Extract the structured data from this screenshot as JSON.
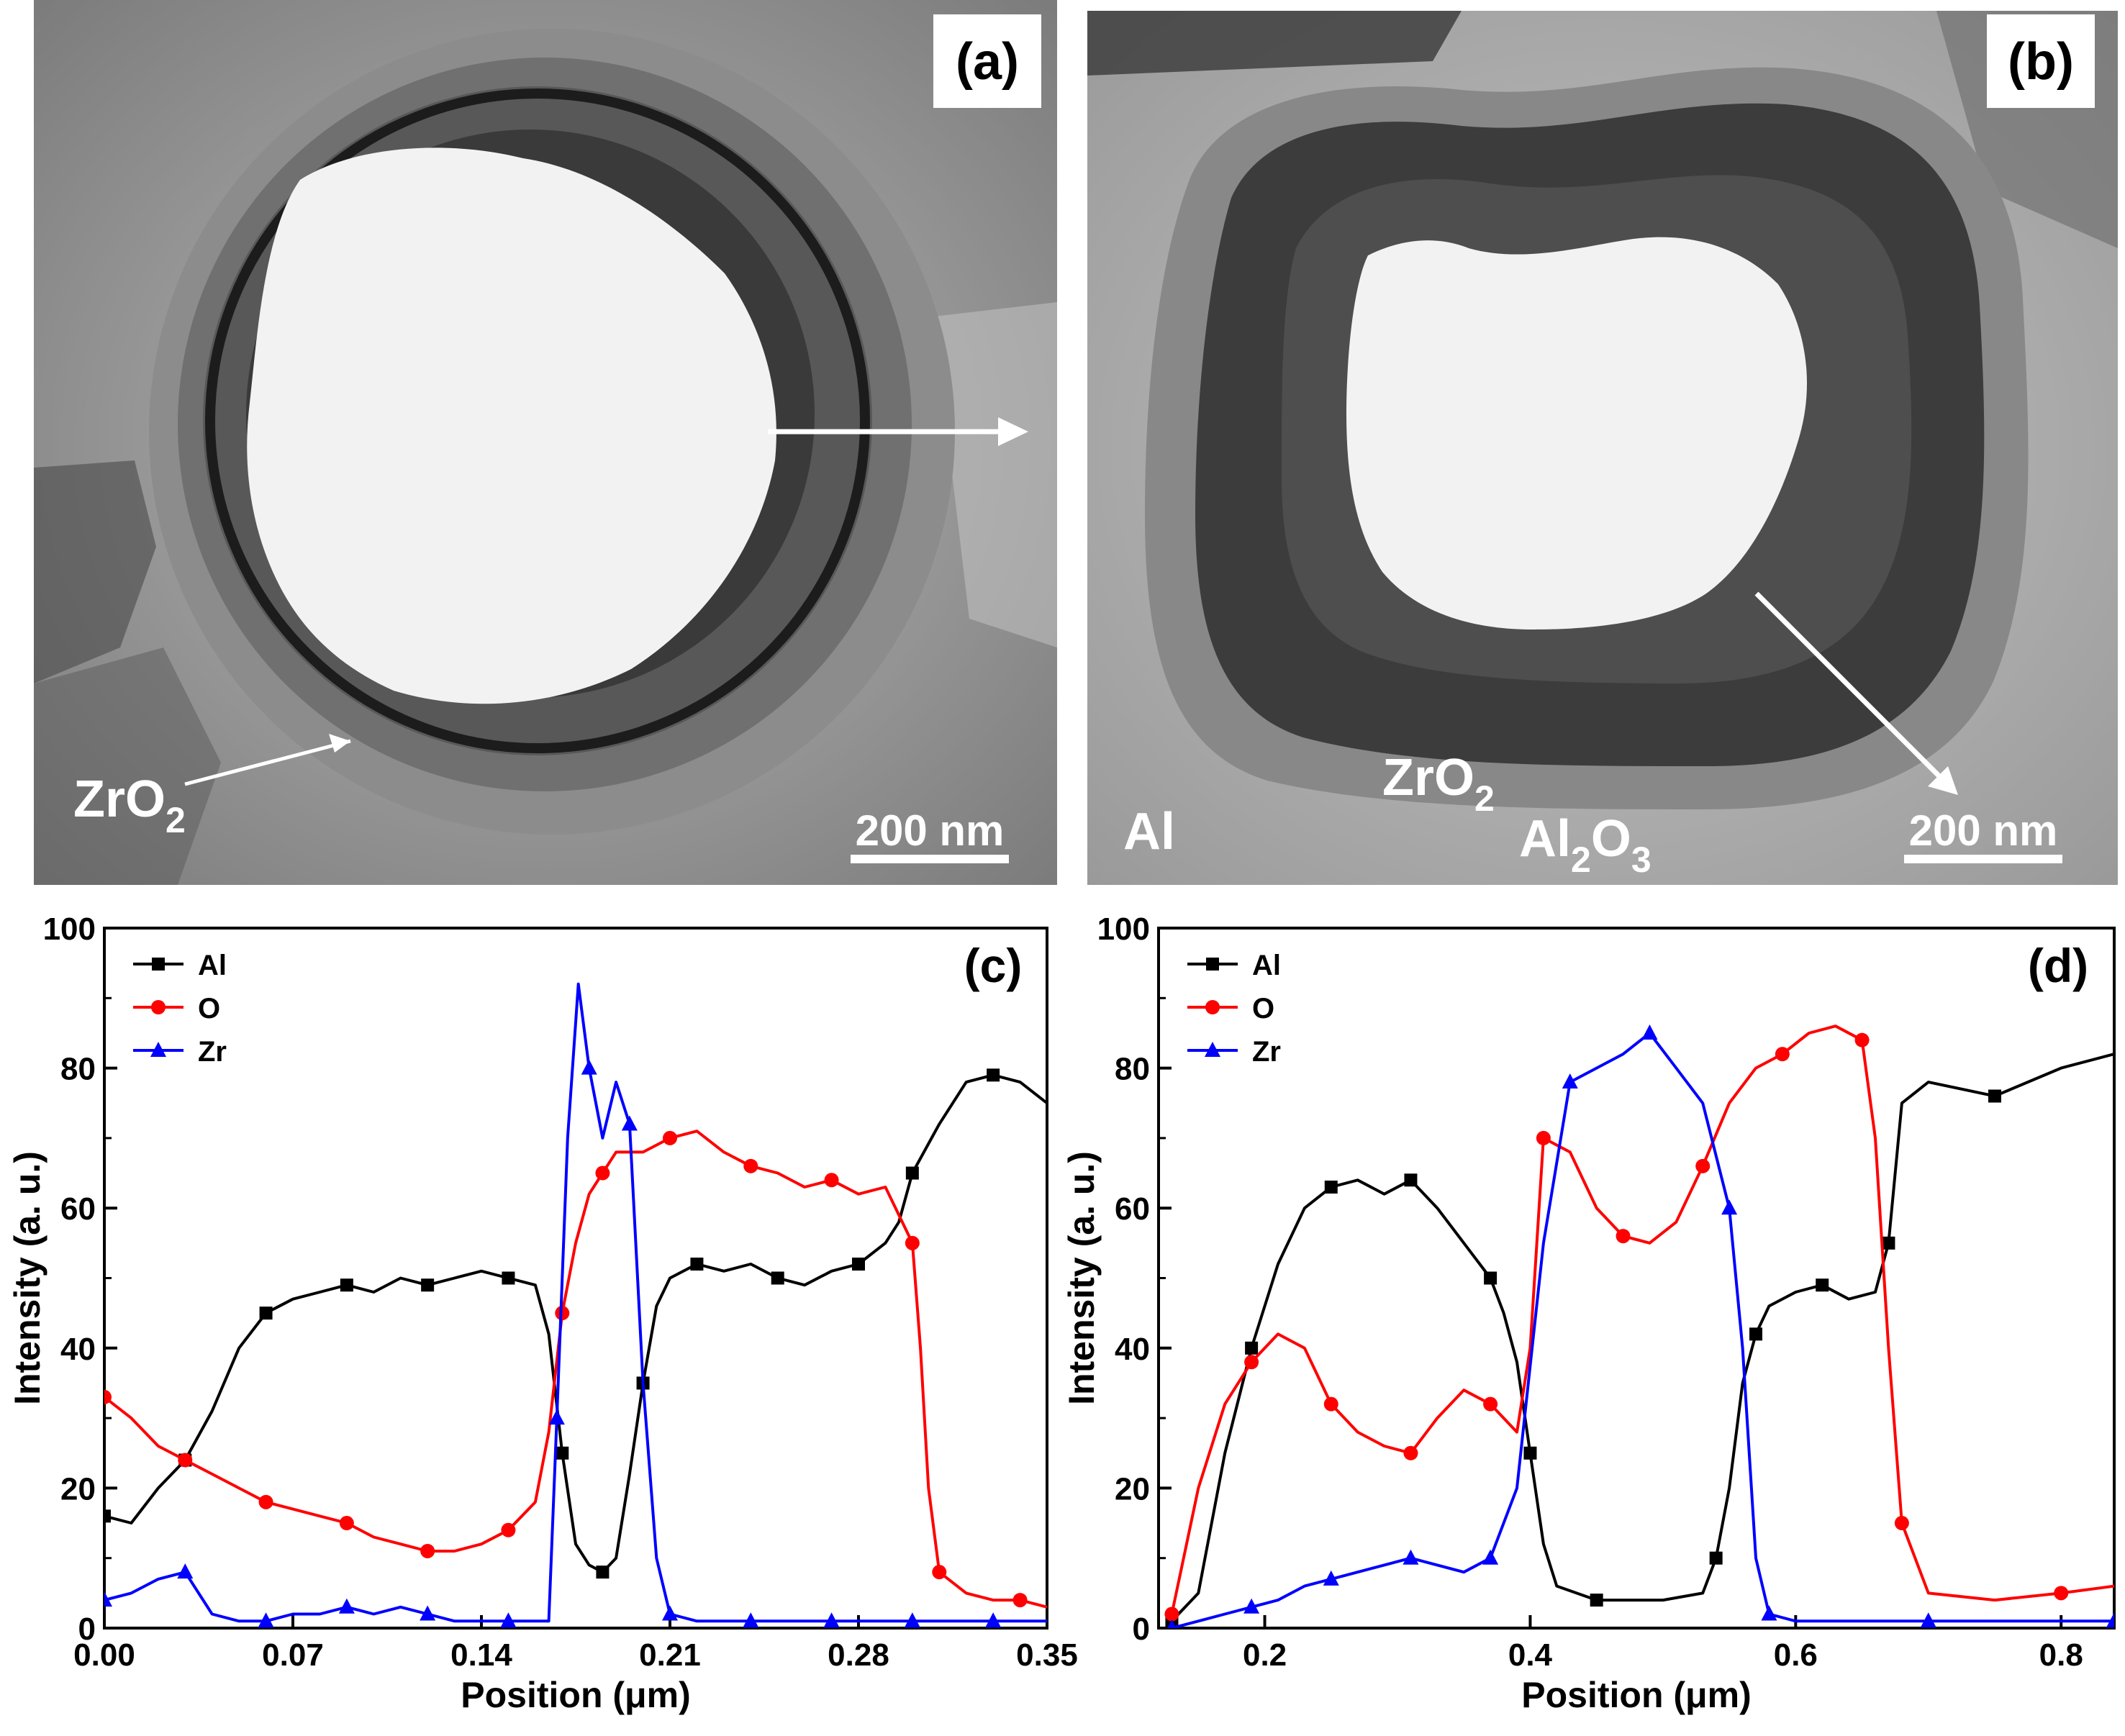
{
  "panels": {
    "a": {
      "tag": "(a)",
      "label_main": "ZrO",
      "label_sub": "2",
      "scale_bar": "200 nm"
    },
    "b": {
      "tag": "(b)",
      "label_al": "Al",
      "label_zro2_main": "ZrO",
      "label_zro2_sub": "2",
      "label_al2o3_a": "Al",
      "label_al2o3_sub1": "2",
      "label_al2o3_b": "O",
      "label_al2o3_sub2": "3",
      "scale_bar": "200 nm"
    }
  },
  "colors": {
    "Al": "#000000",
    "O": "#ff0000",
    "Zr": "#0000ff"
  },
  "chart_data": [
    {
      "panel": "(c)",
      "type": "line",
      "xlabel": "Position (μm)",
      "ylabel": "Intensity (a. u.)",
      "xlim": [
        0,
        0.35
      ],
      "ylim": [
        0,
        100
      ],
      "xticks": [
        "0.00",
        "0.07",
        "0.14",
        "0.21",
        "0.28",
        "0.35"
      ],
      "yticks": [
        "0",
        "20",
        "40",
        "60",
        "80",
        "100"
      ],
      "legend_position": "top-left",
      "series": [
        {
          "name": "Al",
          "marker": "square",
          "points": [
            [
              0.0,
              16
            ],
            [
              0.01,
              15
            ],
            [
              0.02,
              20
            ],
            [
              0.03,
              24
            ],
            [
              0.04,
              31
            ],
            [
              0.05,
              40
            ],
            [
              0.06,
              45
            ],
            [
              0.07,
              47
            ],
            [
              0.08,
              48
            ],
            [
              0.09,
              49
            ],
            [
              0.1,
              48
            ],
            [
              0.11,
              50
            ],
            [
              0.12,
              49
            ],
            [
              0.13,
              50
            ],
            [
              0.14,
              51
            ],
            [
              0.15,
              50
            ],
            [
              0.16,
              49
            ],
            [
              0.165,
              42
            ],
            [
              0.17,
              25
            ],
            [
              0.175,
              12
            ],
            [
              0.18,
              9
            ],
            [
              0.185,
              8
            ],
            [
              0.19,
              10
            ],
            [
              0.195,
              22
            ],
            [
              0.2,
              35
            ],
            [
              0.205,
              46
            ],
            [
              0.21,
              50
            ],
            [
              0.22,
              52
            ],
            [
              0.23,
              51
            ],
            [
              0.24,
              52
            ],
            [
              0.25,
              50
            ],
            [
              0.26,
              49
            ],
            [
              0.27,
              51
            ],
            [
              0.28,
              52
            ],
            [
              0.29,
              55
            ],
            [
              0.295,
              58
            ],
            [
              0.3,
              65
            ],
            [
              0.31,
              72
            ],
            [
              0.32,
              78
            ],
            [
              0.33,
              79
            ],
            [
              0.34,
              78
            ],
            [
              0.35,
              75
            ]
          ]
        },
        {
          "name": "O",
          "marker": "circle",
          "points": [
            [
              0.0,
              33
            ],
            [
              0.01,
              30
            ],
            [
              0.02,
              26
            ],
            [
              0.03,
              24
            ],
            [
              0.04,
              22
            ],
            [
              0.05,
              20
            ],
            [
              0.06,
              18
            ],
            [
              0.07,
              17
            ],
            [
              0.08,
              16
            ],
            [
              0.09,
              15
            ],
            [
              0.1,
              13
            ],
            [
              0.11,
              12
            ],
            [
              0.12,
              11
            ],
            [
              0.13,
              11
            ],
            [
              0.14,
              12
            ],
            [
              0.15,
              14
            ],
            [
              0.16,
              18
            ],
            [
              0.165,
              28
            ],
            [
              0.17,
              45
            ],
            [
              0.175,
              55
            ],
            [
              0.18,
              62
            ],
            [
              0.185,
              65
            ],
            [
              0.19,
              68
            ],
            [
              0.2,
              68
            ],
            [
              0.21,
              70
            ],
            [
              0.22,
              71
            ],
            [
              0.23,
              68
            ],
            [
              0.24,
              66
            ],
            [
              0.25,
              65
            ],
            [
              0.26,
              63
            ],
            [
              0.27,
              64
            ],
            [
              0.28,
              62
            ],
            [
              0.29,
              63
            ],
            [
              0.3,
              55
            ],
            [
              0.303,
              40
            ],
            [
              0.306,
              20
            ],
            [
              0.31,
              8
            ],
            [
              0.32,
              5
            ],
            [
              0.33,
              4
            ],
            [
              0.34,
              4
            ],
            [
              0.35,
              3
            ]
          ]
        },
        {
          "name": "Zr",
          "marker": "triangle",
          "points": [
            [
              0.0,
              4
            ],
            [
              0.01,
              5
            ],
            [
              0.02,
              7
            ],
            [
              0.03,
              8
            ],
            [
              0.04,
              2
            ],
            [
              0.05,
              1
            ],
            [
              0.06,
              1
            ],
            [
              0.07,
              2
            ],
            [
              0.08,
              2
            ],
            [
              0.09,
              3
            ],
            [
              0.1,
              2
            ],
            [
              0.11,
              3
            ],
            [
              0.12,
              2
            ],
            [
              0.13,
              1
            ],
            [
              0.14,
              1
            ],
            [
              0.15,
              1
            ],
            [
              0.16,
              1
            ],
            [
              0.165,
              1
            ],
            [
              0.168,
              30
            ],
            [
              0.172,
              70
            ],
            [
              0.176,
              92
            ],
            [
              0.18,
              80
            ],
            [
              0.185,
              70
            ],
            [
              0.19,
              78
            ],
            [
              0.195,
              72
            ],
            [
              0.2,
              35
            ],
            [
              0.205,
              10
            ],
            [
              0.21,
              2
            ],
            [
              0.22,
              1
            ],
            [
              0.23,
              1
            ],
            [
              0.24,
              1
            ],
            [
              0.25,
              1
            ],
            [
              0.26,
              1
            ],
            [
              0.27,
              1
            ],
            [
              0.28,
              1
            ],
            [
              0.29,
              1
            ],
            [
              0.3,
              1
            ],
            [
              0.31,
              1
            ],
            [
              0.32,
              1
            ],
            [
              0.33,
              1
            ],
            [
              0.34,
              1
            ],
            [
              0.35,
              1
            ]
          ]
        }
      ]
    },
    {
      "panel": "(d)",
      "type": "line",
      "xlabel": "Position (μm)",
      "ylabel": "Intensity (a. u.)",
      "xlim": [
        0.12,
        0.84
      ],
      "ylim": [
        0,
        100
      ],
      "xticks": [
        "0.2",
        "0.4",
        "0.6",
        "0.8"
      ],
      "yticks": [
        "0",
        "20",
        "40",
        "60",
        "80",
        "100"
      ],
      "legend_position": "top-left",
      "series": [
        {
          "name": "Al",
          "marker": "square",
          "points": [
            [
              0.13,
              1
            ],
            [
              0.15,
              5
            ],
            [
              0.17,
              25
            ],
            [
              0.19,
              40
            ],
            [
              0.21,
              52
            ],
            [
              0.23,
              60
            ],
            [
              0.25,
              63
            ],
            [
              0.27,
              64
            ],
            [
              0.29,
              62
            ],
            [
              0.31,
              64
            ],
            [
              0.33,
              60
            ],
            [
              0.35,
              55
            ],
            [
              0.37,
              50
            ],
            [
              0.38,
              45
            ],
            [
              0.39,
              38
            ],
            [
              0.4,
              25
            ],
            [
              0.41,
              12
            ],
            [
              0.42,
              6
            ],
            [
              0.45,
              4
            ],
            [
              0.5,
              4
            ],
            [
              0.53,
              5
            ],
            [
              0.54,
              10
            ],
            [
              0.55,
              20
            ],
            [
              0.56,
              35
            ],
            [
              0.57,
              42
            ],
            [
              0.58,
              46
            ],
            [
              0.6,
              48
            ],
            [
              0.62,
              49
            ],
            [
              0.64,
              47
            ],
            [
              0.66,
              48
            ],
            [
              0.67,
              55
            ],
            [
              0.68,
              75
            ],
            [
              0.7,
              78
            ],
            [
              0.75,
              76
            ],
            [
              0.8,
              80
            ],
            [
              0.84,
              82
            ]
          ]
        },
        {
          "name": "O",
          "marker": "circle",
          "points": [
            [
              0.13,
              2
            ],
            [
              0.15,
              20
            ],
            [
              0.17,
              32
            ],
            [
              0.19,
              38
            ],
            [
              0.21,
              42
            ],
            [
              0.23,
              40
            ],
            [
              0.25,
              32
            ],
            [
              0.27,
              28
            ],
            [
              0.29,
              26
            ],
            [
              0.31,
              25
            ],
            [
              0.33,
              30
            ],
            [
              0.35,
              34
            ],
            [
              0.37,
              32
            ],
            [
              0.39,
              28
            ],
            [
              0.4,
              40
            ],
            [
              0.41,
              70
            ],
            [
              0.43,
              68
            ],
            [
              0.45,
              60
            ],
            [
              0.47,
              56
            ],
            [
              0.49,
              55
            ],
            [
              0.51,
              58
            ],
            [
              0.53,
              66
            ],
            [
              0.55,
              75
            ],
            [
              0.57,
              80
            ],
            [
              0.59,
              82
            ],
            [
              0.61,
              85
            ],
            [
              0.63,
              86
            ],
            [
              0.65,
              84
            ],
            [
              0.66,
              70
            ],
            [
              0.67,
              40
            ],
            [
              0.68,
              15
            ],
            [
              0.7,
              5
            ],
            [
              0.75,
              4
            ],
            [
              0.8,
              5
            ],
            [
              0.84,
              6
            ]
          ]
        },
        {
          "name": "Zr",
          "marker": "triangle",
          "points": [
            [
              0.13,
              0
            ],
            [
              0.15,
              1
            ],
            [
              0.17,
              2
            ],
            [
              0.19,
              3
            ],
            [
              0.21,
              4
            ],
            [
              0.23,
              6
            ],
            [
              0.25,
              7
            ],
            [
              0.27,
              8
            ],
            [
              0.29,
              9
            ],
            [
              0.31,
              10
            ],
            [
              0.33,
              9
            ],
            [
              0.35,
              8
            ],
            [
              0.37,
              10
            ],
            [
              0.39,
              20
            ],
            [
              0.41,
              55
            ],
            [
              0.43,
              78
            ],
            [
              0.45,
              80
            ],
            [
              0.47,
              82
            ],
            [
              0.49,
              85
            ],
            [
              0.51,
              80
            ],
            [
              0.53,
              75
            ],
            [
              0.55,
              60
            ],
            [
              0.56,
              40
            ],
            [
              0.57,
              10
            ],
            [
              0.58,
              2
            ],
            [
              0.6,
              1
            ],
            [
              0.65,
              1
            ],
            [
              0.7,
              1
            ],
            [
              0.75,
              1
            ],
            [
              0.8,
              1
            ],
            [
              0.84,
              1
            ]
          ]
        }
      ]
    }
  ]
}
